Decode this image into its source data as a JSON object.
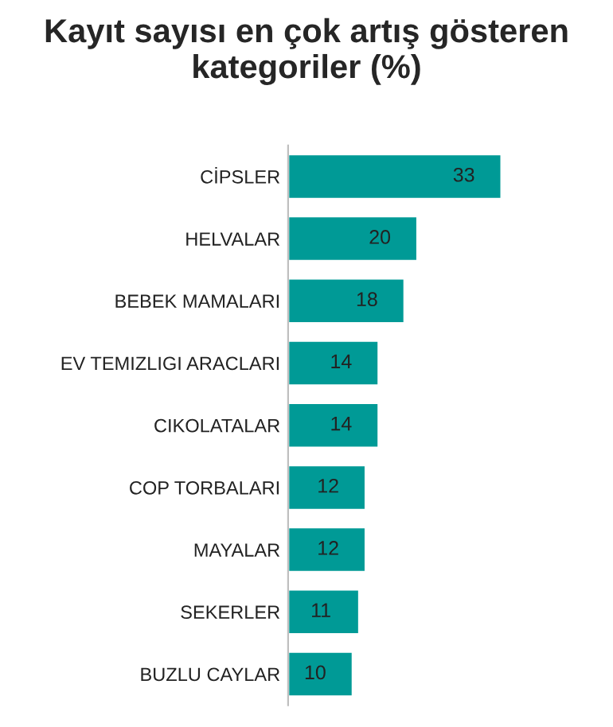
{
  "chart_data": {
    "type": "bar",
    "orientation": "horizontal",
    "title": "Kayıt sayısı en çok artış gösteren kategoriler (%)",
    "categories": [
      "CİPSLER",
      "HELVALAR",
      "BEBEK MAMALARI",
      "EV TEMIZLIGI ARACLARI",
      "CIKOLATALAR",
      "COP TORBALARI",
      "MAYALAR",
      "SEKERLER",
      "BUZLU CAYLAR"
    ],
    "values": [
      33,
      20,
      18,
      14,
      14,
      12,
      12,
      11,
      10
    ],
    "color": "#009a96",
    "data_labels": true,
    "grid": false,
    "legend": false
  }
}
